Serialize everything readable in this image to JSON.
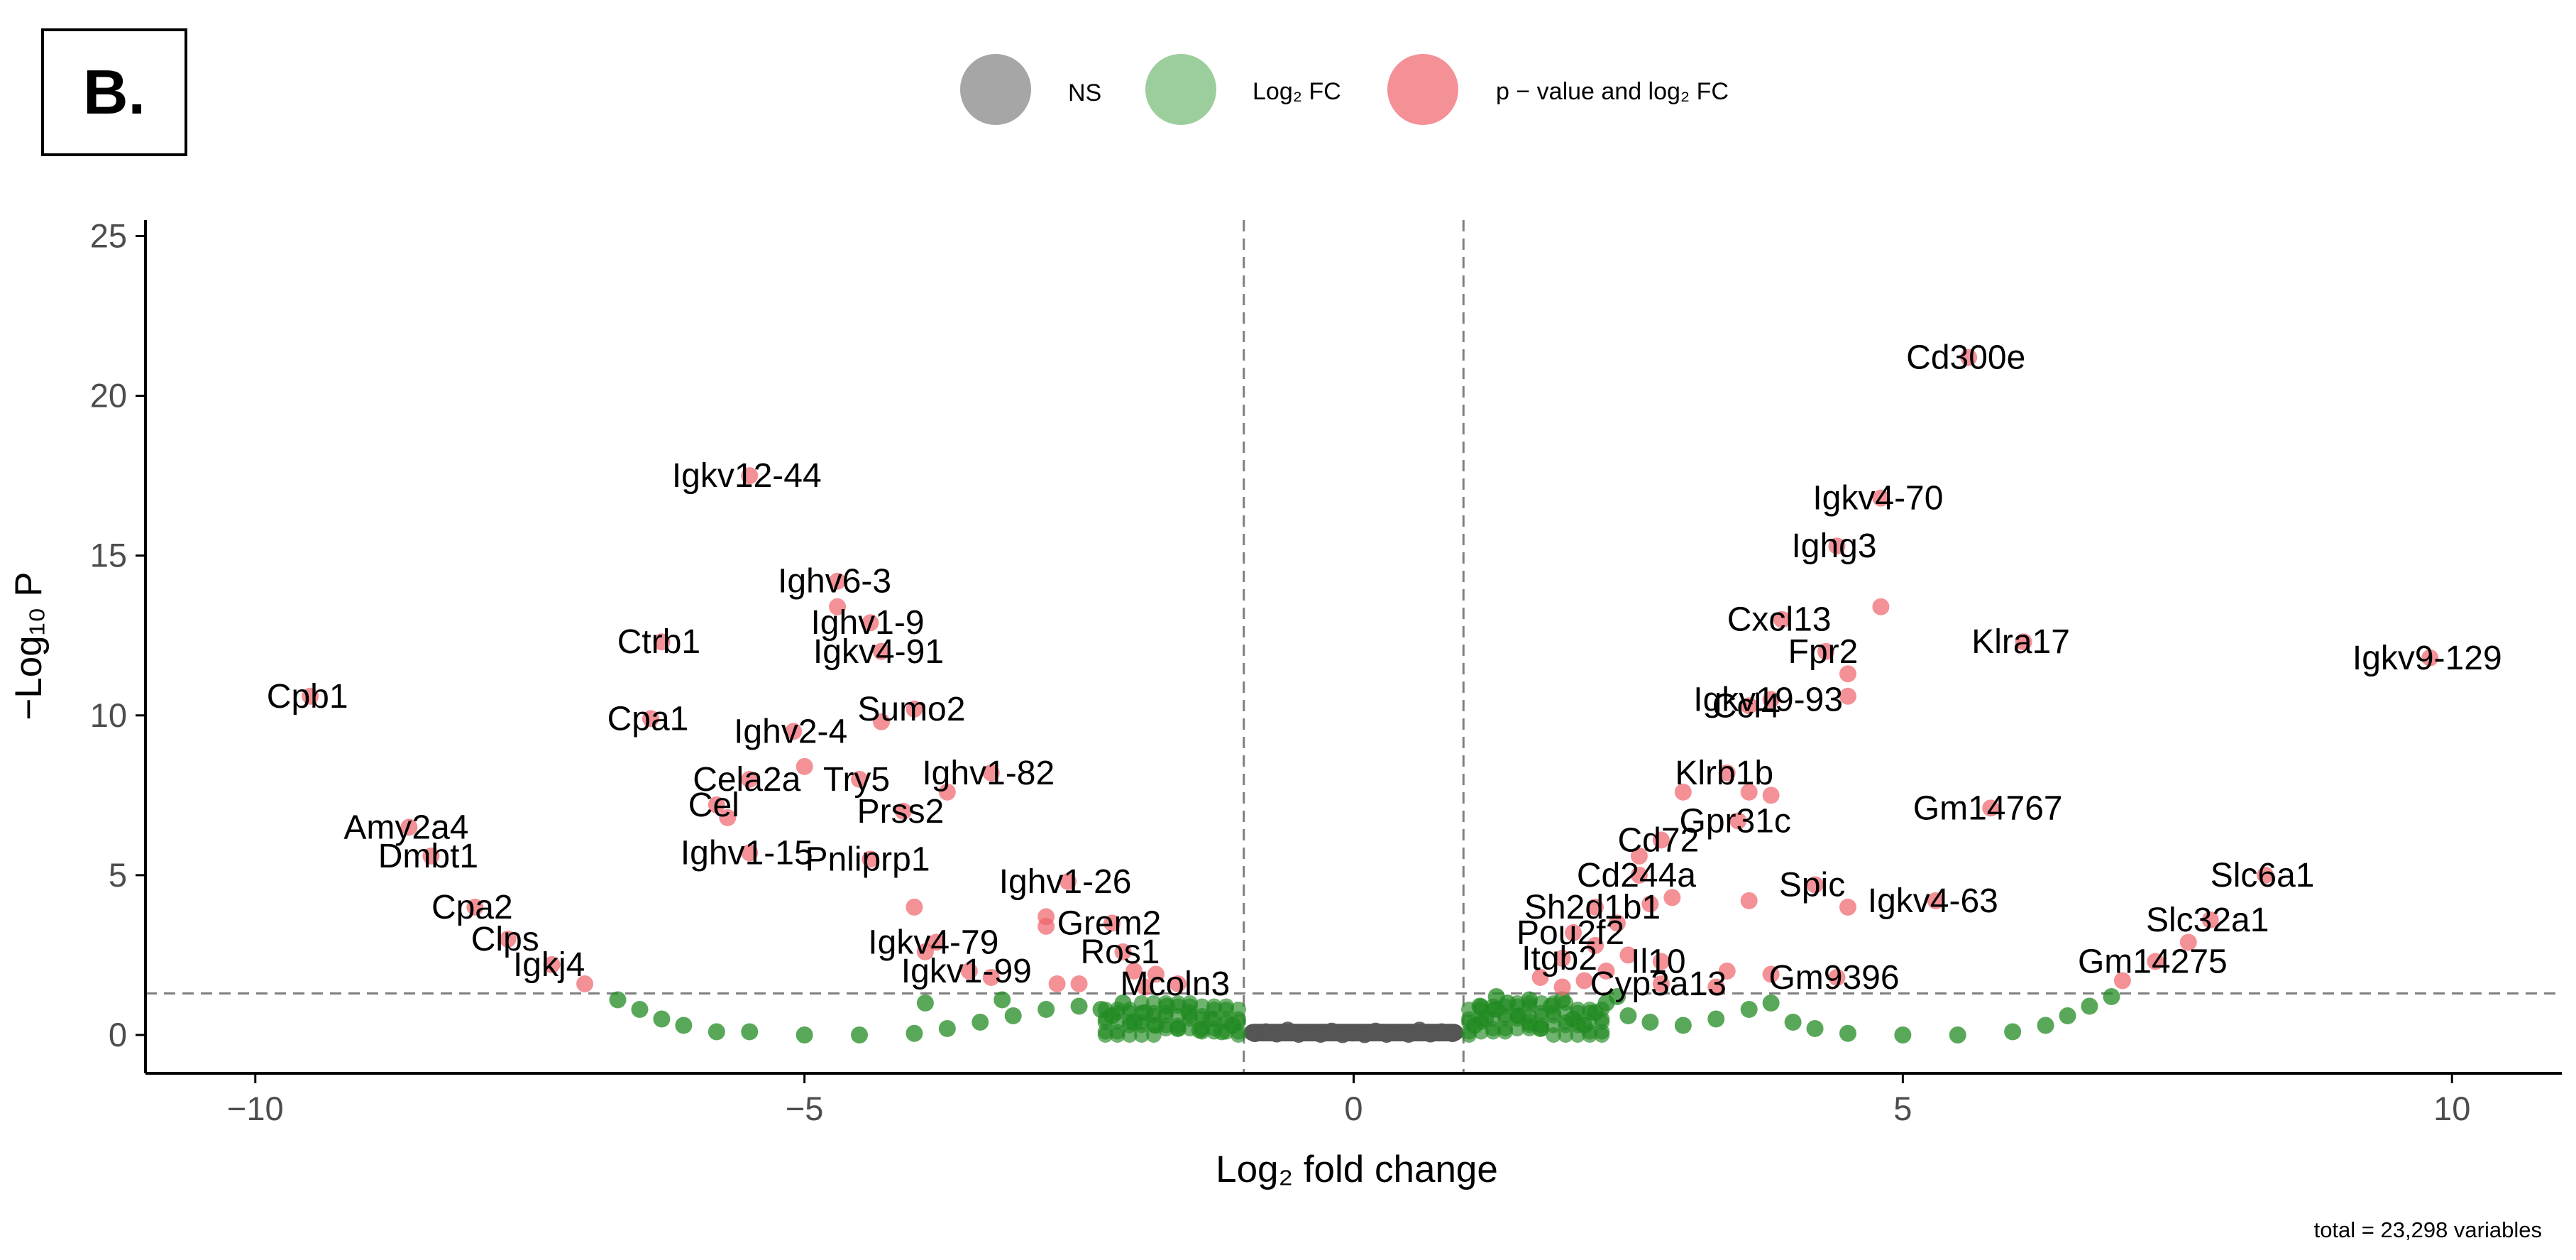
{
  "panel_label": "B.",
  "legend": {
    "items": [
      {
        "label": "NS",
        "color": "#808080"
      },
      {
        "label": "Log₂ FC",
        "color": "#5aab5a"
      },
      {
        "label": "p − value and log₂ FC",
        "color": "#f0626a"
      }
    ]
  },
  "caption": "total = 23,298 variables",
  "colors": {
    "ns": "#555555",
    "fc": "#228b22",
    "both": "#f0626a",
    "threshold_line": "#7f7f7f"
  },
  "chart_data": {
    "type": "scatter",
    "title": "",
    "xlabel": "Log₂ fold change",
    "ylabel": "−Log₁₀ P",
    "xlim": [
      -11,
      11
    ],
    "ylim": [
      -1.2,
      25.5
    ],
    "xticks": [
      -10,
      -5,
      0,
      5,
      10
    ],
    "xtick_labels": [
      "−10",
      "−5",
      "0",
      "5",
      "10"
    ],
    "yticks": [
      0,
      5,
      10,
      15,
      20,
      25
    ],
    "ytick_labels": [
      "0",
      "5",
      "10",
      "15",
      "20",
      "25"
    ],
    "thresholds": {
      "log2fc": [
        -1,
        1
      ],
      "neg_log10_p": 1.3
    },
    "series": [
      {
        "name": "NS",
        "points": [
          [
            -0.9,
            0.04
          ],
          [
            -0.7,
            0.03
          ],
          [
            -0.5,
            0.02
          ],
          [
            -0.3,
            0.02
          ],
          [
            -0.1,
            0.01
          ],
          [
            0.1,
            0.01
          ],
          [
            0.3,
            0.02
          ],
          [
            0.5,
            0.02
          ],
          [
            0.7,
            0.03
          ],
          [
            0.9,
            0.04
          ],
          [
            -0.8,
            0.1
          ],
          [
            -0.4,
            0.08
          ],
          [
            0.0,
            0.06
          ],
          [
            0.4,
            0.08
          ],
          [
            0.8,
            0.1
          ],
          [
            -0.6,
            0.15
          ],
          [
            0.6,
            0.15
          ],
          [
            -0.2,
            0.12
          ],
          [
            0.2,
            0.12
          ]
        ]
      },
      {
        "name": "Log2 FC",
        "points": [
          [
            -6.7,
            1.1
          ],
          [
            -6.5,
            0.8
          ],
          [
            -6.3,
            0.5
          ],
          [
            -6.1,
            0.3
          ],
          [
            -5.8,
            0.1
          ],
          [
            -5.5,
            0.1
          ],
          [
            -5.0,
            0.0
          ],
          [
            -4.5,
            0.0
          ],
          [
            -4.0,
            0.05
          ],
          [
            -3.7,
            0.2
          ],
          [
            -3.4,
            0.4
          ],
          [
            -3.1,
            0.6
          ],
          [
            -2.8,
            0.8
          ],
          [
            -2.5,
            0.9
          ],
          [
            -2.2,
            0.6
          ],
          [
            -2.0,
            0.4
          ],
          [
            -1.8,
            0.3
          ],
          [
            -1.6,
            0.2
          ],
          [
            -1.4,
            0.15
          ],
          [
            -1.2,
            0.1
          ],
          [
            -1.1,
            0.3
          ],
          [
            -1.3,
            0.5
          ],
          [
            -1.5,
            0.7
          ],
          [
            -1.7,
            0.9
          ],
          [
            -1.9,
            0.7
          ],
          [
            -2.1,
            1.0
          ],
          [
            -2.3,
            0.8
          ],
          [
            -3.9,
            1.0
          ],
          [
            -3.2,
            1.1
          ],
          [
            1.1,
            0.3
          ],
          [
            1.2,
            0.5
          ],
          [
            1.3,
            0.8
          ],
          [
            1.4,
            1.0
          ],
          [
            1.5,
            0.6
          ],
          [
            1.6,
            0.4
          ],
          [
            1.7,
            0.2
          ],
          [
            1.8,
            0.9
          ],
          [
            1.9,
            1.1
          ],
          [
            2.0,
            0.5
          ],
          [
            2.1,
            0.3
          ],
          [
            2.2,
            0.7
          ],
          [
            2.3,
            1.0
          ],
          [
            2.5,
            0.6
          ],
          [
            2.7,
            0.4
          ],
          [
            3.0,
            0.3
          ],
          [
            3.3,
            0.5
          ],
          [
            3.6,
            0.8
          ],
          [
            3.8,
            1.0
          ],
          [
            4.0,
            0.4
          ],
          [
            4.2,
            0.2
          ],
          [
            4.5,
            0.05
          ],
          [
            5.0,
            0.0
          ],
          [
            5.5,
            0.0
          ],
          [
            6.0,
            0.1
          ],
          [
            6.3,
            0.3
          ],
          [
            6.5,
            0.6
          ],
          [
            6.7,
            0.9
          ],
          [
            6.9,
            1.2
          ],
          [
            1.3,
            1.2
          ],
          [
            1.6,
            1.1
          ],
          [
            2.4,
            1.2
          ],
          [
            1.15,
            0.9
          ]
        ]
      },
      {
        "name": "p-value and log2 FC",
        "points": [
          [
            -9.5,
            10.6
          ],
          [
            -8.6,
            6.5
          ],
          [
            -8.4,
            5.6
          ],
          [
            -8.0,
            4.0
          ],
          [
            -7.7,
            3.0
          ],
          [
            -7.3,
            2.2
          ],
          [
            -7.0,
            1.6
          ],
          [
            -6.3,
            12.3
          ],
          [
            -6.4,
            9.9
          ],
          [
            -5.8,
            7.2
          ],
          [
            -5.7,
            6.8
          ],
          [
            -5.5,
            17.5
          ],
          [
            -5.5,
            8.0
          ],
          [
            -5.5,
            5.7
          ],
          [
            -5.1,
            9.5
          ],
          [
            -5.0,
            8.4
          ],
          [
            -4.7,
            14.2
          ],
          [
            -4.7,
            13.4
          ],
          [
            -4.4,
            12.9
          ],
          [
            -4.3,
            12.0
          ],
          [
            -4.3,
            9.8
          ],
          [
            -4.0,
            10.2
          ],
          [
            -4.5,
            8.0
          ],
          [
            -4.1,
            7.0
          ],
          [
            -3.7,
            7.6
          ],
          [
            -3.3,
            8.2
          ],
          [
            -4.4,
            5.5
          ],
          [
            -4.0,
            4.0
          ],
          [
            -3.8,
            2.9
          ],
          [
            -3.9,
            2.6
          ],
          [
            -3.5,
            2.0
          ],
          [
            -3.3,
            1.8
          ],
          [
            -2.8,
            3.7
          ],
          [
            -2.8,
            3.4
          ],
          [
            -2.6,
            4.8
          ],
          [
            -2.2,
            3.5
          ],
          [
            -2.1,
            2.6
          ],
          [
            -2.0,
            2.0
          ],
          [
            -1.8,
            1.9
          ],
          [
            -1.6,
            1.6
          ],
          [
            -2.5,
            1.6
          ],
          [
            -2.7,
            1.6
          ],
          [
            -1.9,
            1.5
          ],
          [
            5.6,
            21.2
          ],
          [
            4.8,
            16.8
          ],
          [
            4.4,
            15.3
          ],
          [
            4.8,
            13.4
          ],
          [
            3.9,
            13.0
          ],
          [
            4.3,
            12.0
          ],
          [
            4.5,
            11.3
          ],
          [
            4.5,
            10.6
          ],
          [
            3.8,
            10.5
          ],
          [
            3.6,
            10.3
          ],
          [
            6.1,
            12.3
          ],
          [
            9.8,
            11.8
          ],
          [
            3.4,
            8.2
          ],
          [
            3.6,
            7.6
          ],
          [
            3.8,
            7.5
          ],
          [
            3.0,
            7.6
          ],
          [
            5.8,
            7.1
          ],
          [
            3.5,
            6.7
          ],
          [
            2.8,
            6.1
          ],
          [
            2.6,
            5.6
          ],
          [
            2.6,
            5.0
          ],
          [
            3.6,
            4.2
          ],
          [
            4.5,
            4.0
          ],
          [
            4.2,
            4.7
          ],
          [
            5.3,
            4.2
          ],
          [
            8.3,
            5.0
          ],
          [
            7.8,
            3.6
          ],
          [
            7.6,
            2.9
          ],
          [
            7.3,
            2.3
          ],
          [
            7.0,
            1.7
          ],
          [
            2.2,
            4.0
          ],
          [
            2.4,
            3.5
          ],
          [
            2.7,
            4.1
          ],
          [
            2.9,
            4.3
          ],
          [
            2.0,
            3.2
          ],
          [
            2.2,
            2.8
          ],
          [
            2.5,
            2.5
          ],
          [
            2.8,
            2.3
          ],
          [
            2.3,
            2.0
          ],
          [
            1.9,
            2.4
          ],
          [
            1.7,
            1.8
          ],
          [
            1.9,
            1.5
          ],
          [
            2.1,
            1.7
          ],
          [
            3.4,
            2.0
          ],
          [
            3.8,
            1.9
          ],
          [
            4.4,
            1.8
          ],
          [
            3.3,
            1.5
          ],
          [
            2.8,
            1.6
          ]
        ]
      }
    ],
    "labels": [
      {
        "text": "Cpb1",
        "x": -9.5,
        "y": 10.6
      },
      {
        "text": "Amy2a4",
        "x": -8.6,
        "y": 6.5
      },
      {
        "text": "Dmbt1",
        "x": -8.4,
        "y": 5.6
      },
      {
        "text": "Cpa2",
        "x": -8.0,
        "y": 4.0
      },
      {
        "text": "Clps",
        "x": -7.7,
        "y": 3.0
      },
      {
        "text": "Igkj4",
        "x": -7.3,
        "y": 2.2
      },
      {
        "text": "Ctrb1",
        "x": -6.3,
        "y": 12.3
      },
      {
        "text": "Cpa1",
        "x": -6.4,
        "y": 9.9
      },
      {
        "text": "Igkv12-44",
        "x": -5.5,
        "y": 17.5
      },
      {
        "text": "Cela2a",
        "x": -5.5,
        "y": 8.0
      },
      {
        "text": "Cel",
        "x": -5.8,
        "y": 7.2
      },
      {
        "text": "Ighv1-15",
        "x": -5.5,
        "y": 5.7
      },
      {
        "text": "Ighv2-4",
        "x": -5.1,
        "y": 9.5
      },
      {
        "text": "Ighv6-3",
        "x": -4.7,
        "y": 14.2
      },
      {
        "text": "Ighv1-9",
        "x": -4.4,
        "y": 12.9
      },
      {
        "text": "Igkv4-91",
        "x": -4.3,
        "y": 12.0
      },
      {
        "text": "Sumo2",
        "x": -4.0,
        "y": 10.2
      },
      {
        "text": "Try5",
        "x": -4.5,
        "y": 8.0
      },
      {
        "text": "Prss2",
        "x": -4.1,
        "y": 7.0
      },
      {
        "text": "Ighv1-82",
        "x": -3.3,
        "y": 8.2
      },
      {
        "text": "Pnliprp1",
        "x": -4.4,
        "y": 5.5
      },
      {
        "text": "Ighv1-26",
        "x": -2.6,
        "y": 4.8
      },
      {
        "text": "Igkv4-79",
        "x": -3.8,
        "y": 2.9
      },
      {
        "text": "Grem2",
        "x": -2.2,
        "y": 3.5
      },
      {
        "text": "Ros1",
        "x": -2.1,
        "y": 2.6
      },
      {
        "text": "Igkv1-99",
        "x": -3.5,
        "y": 2.0
      },
      {
        "text": "Mcoln3",
        "x": -1.6,
        "y": 1.6
      },
      {
        "text": "Cd300e",
        "x": 5.6,
        "y": 21.2
      },
      {
        "text": "Igkv4-70",
        "x": 4.8,
        "y": 16.8
      },
      {
        "text": "Ighg3",
        "x": 4.4,
        "y": 15.3
      },
      {
        "text": "Cxcl13",
        "x": 3.9,
        "y": 13.0
      },
      {
        "text": "Fpr2",
        "x": 4.3,
        "y": 12.0
      },
      {
        "text": "Klra17",
        "x": 6.1,
        "y": 12.3
      },
      {
        "text": "Igkv9-129",
        "x": 9.8,
        "y": 11.8
      },
      {
        "text": "Igkv19-93",
        "x": 3.8,
        "y": 10.5
      },
      {
        "text": "Ccl4",
        "x": 3.6,
        "y": 10.3
      },
      {
        "text": "Klrb1b",
        "x": 3.4,
        "y": 8.2
      },
      {
        "text": "Gm14767",
        "x": 5.8,
        "y": 7.1
      },
      {
        "text": "Gpr31c",
        "x": 3.5,
        "y": 6.7
      },
      {
        "text": "Cd72",
        "x": 2.8,
        "y": 6.1
      },
      {
        "text": "Cd244a",
        "x": 2.6,
        "y": 5.0
      },
      {
        "text": "Spic",
        "x": 4.2,
        "y": 4.7
      },
      {
        "text": "Igkv4-63",
        "x": 5.3,
        "y": 4.2
      },
      {
        "text": "Slc6a1",
        "x": 8.3,
        "y": 5.0
      },
      {
        "text": "Slc32a1",
        "x": 7.8,
        "y": 3.6
      },
      {
        "text": "Sh2d1b1",
        "x": 2.2,
        "y": 4.0
      },
      {
        "text": "Pou2f2",
        "x": 2.0,
        "y": 3.2
      },
      {
        "text": "Il10",
        "x": 2.8,
        "y": 2.3
      },
      {
        "text": "Gm9396",
        "x": 4.4,
        "y": 1.8
      },
      {
        "text": "Gm14275",
        "x": 7.3,
        "y": 2.3
      },
      {
        "text": "Itgb2",
        "x": 1.9,
        "y": 2.4
      },
      {
        "text": "Cyp3a13",
        "x": 2.8,
        "y": 1.6
      }
    ]
  }
}
